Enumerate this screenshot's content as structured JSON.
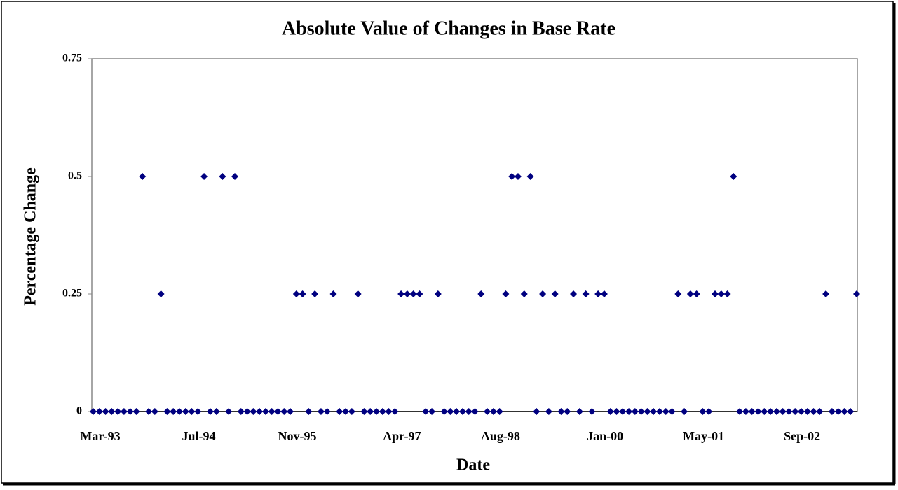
{
  "chart_data": {
    "type": "scatter",
    "title": "Absolute Value of Changes in Base Rate",
    "x_label": "Date",
    "y_label": "Percentage Change",
    "categories": [
      "Mar-93",
      null,
      null,
      null,
      null,
      null,
      null,
      null,
      null,
      null,
      null,
      null,
      null,
      null,
      null,
      null,
      "Jul-94",
      null,
      null,
      null,
      null,
      null,
      null,
      null,
      null,
      null,
      null,
      null,
      null,
      null,
      null,
      null,
      "Nov-95",
      null,
      null,
      null,
      null,
      null,
      null,
      null,
      null,
      null,
      null,
      null,
      null,
      null,
      null,
      null,
      null,
      "Apr-97",
      null,
      null,
      null,
      null,
      null,
      null,
      null,
      null,
      null,
      null,
      null,
      null,
      null,
      null,
      null,
      "Aug-98",
      null,
      null,
      null,
      null,
      null,
      null,
      null,
      null,
      null,
      null,
      null,
      null,
      null,
      null,
      null,
      null,
      "Jan-00",
      null,
      null,
      null,
      null,
      null,
      null,
      null,
      null,
      null,
      null,
      null,
      null,
      null,
      null,
      null,
      "May-01",
      null,
      null,
      null,
      null,
      null,
      null,
      null,
      null,
      null,
      null,
      null,
      null,
      null,
      null,
      null,
      "Sep-02",
      null,
      null,
      null,
      null,
      null,
      null,
      null,
      null,
      null,
      null
    ],
    "values": [
      0,
      0,
      0,
      0,
      0,
      0,
      0,
      0,
      0.5,
      0,
      0,
      0.25,
      0,
      0,
      0,
      0,
      0,
      0,
      0.5,
      0,
      0,
      0.5,
      0,
      0.5,
      0,
      0,
      0,
      0,
      0,
      0,
      0,
      0,
      0,
      0.25,
      0.25,
      0,
      0.25,
      0,
      0,
      0.25,
      0,
      0,
      0,
      0.25,
      0,
      0,
      0,
      0,
      0,
      0,
      0.25,
      0.25,
      0.25,
      0.25,
      0,
      0,
      0.25,
      0,
      0,
      0,
      0,
      0,
      0,
      0.25,
      0,
      0,
      0,
      0.25,
      0.5,
      0.5,
      0.25,
      0.5,
      0,
      0.25,
      0,
      0.25,
      0,
      0,
      0.25,
      0,
      0.25,
      0,
      0.25,
      0.25,
      0,
      0,
      0,
      0,
      0,
      0,
      0,
      0,
      0,
      0,
      0,
      0.25,
      0,
      0.25,
      0.25,
      0,
      0,
      0.25,
      0.25,
      0.25,
      0.5,
      0,
      0,
      0,
      0,
      0,
      0,
      0,
      0,
      0,
      0,
      0,
      0,
      0,
      0,
      0.25,
      0,
      0,
      0,
      0,
      0.25
    ],
    "color": "#000080",
    "ylim": [
      0,
      0.75
    ],
    "yticks": [
      0,
      0.25,
      0.5,
      0.75
    ],
    "grid": false
  }
}
